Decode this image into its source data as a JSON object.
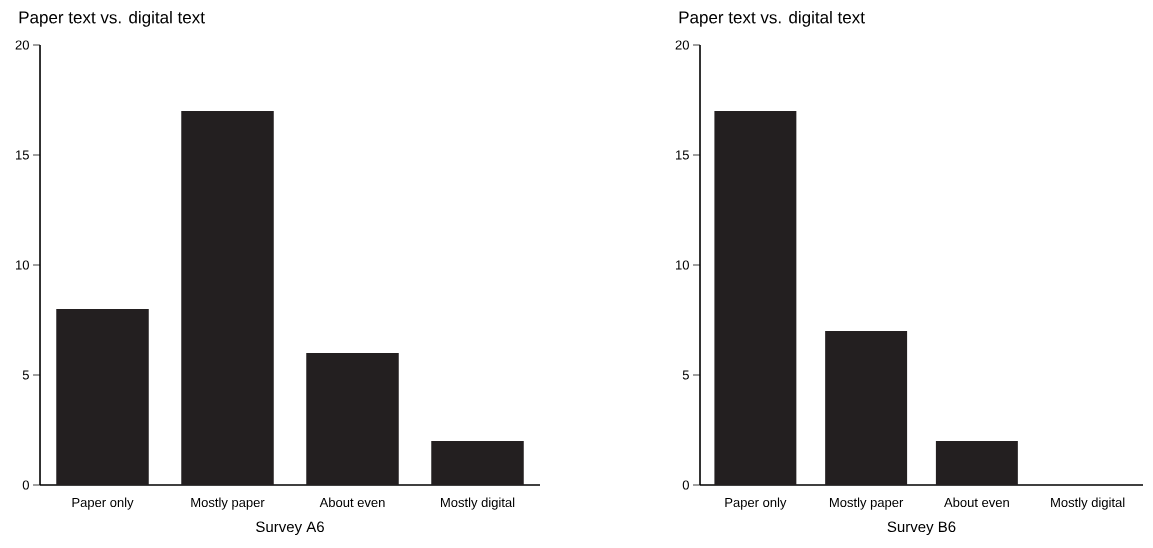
{
  "chart_data": [
    {
      "type": "bar",
      "title": "Paper text vs. digital text",
      "xlabel": "Survey A6",
      "categories": [
        "Paper only",
        "Mostly paper",
        "About even",
        "Mostly digital"
      ],
      "values": [
        8,
        17,
        6,
        2
      ],
      "color": "#231f20",
      "ylim": [
        0,
        20
      ],
      "yticks": [
        0,
        5,
        10,
        15,
        20
      ],
      "grid": false
    },
    {
      "type": "bar",
      "title": "Paper text vs. digital text",
      "xlabel": "Survey B6",
      "categories": [
        "Paper only",
        "Mostly paper",
        "About even",
        "Mostly digital"
      ],
      "values": [
        17,
        7,
        2,
        0
      ],
      "color": "#231f20",
      "ylim": [
        0,
        20
      ],
      "yticks": [
        0,
        5,
        10,
        15,
        20
      ],
      "grid": false
    }
  ]
}
